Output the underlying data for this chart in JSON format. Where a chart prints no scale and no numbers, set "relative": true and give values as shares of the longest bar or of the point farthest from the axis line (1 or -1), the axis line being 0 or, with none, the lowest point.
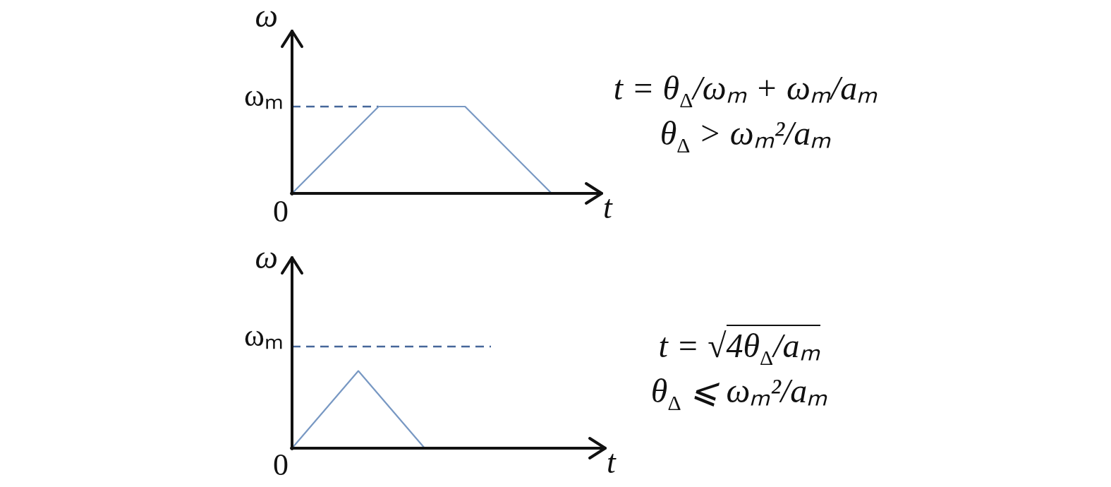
{
  "chart_data": [
    {
      "type": "line",
      "relative": true,
      "xlabel": "t",
      "ylabel": "ω",
      "categories": [
        null,
        null,
        null,
        null
      ],
      "marker": "none",
      "line_style": "solid",
      "series": [
        {
          "color": "#7898c3",
          "values": [
            0,
            1,
            1,
            0
          ]
        },
        {
          "color": "#46679a",
          "line_style": "dashed",
          "values": [
            1,
            1,
            null,
            null
          ]
        }
      ],
      "annotations": [
        "ωₘ",
        "0",
        "t = θ$_{Δ}$/ωₘ + ωₘ/aₘ",
        "θ$_{Δ}$ > ωₘ²/aₘ"
      ]
    },
    {
      "type": "line",
      "relative": true,
      "xlabel": "t",
      "ylabel": "ω",
      "categories": [
        null,
        null,
        null,
        null
      ],
      "marker": "none",
      "line_style": "solid",
      "series": [
        {
          "color": "#7898c3",
          "values": [
            0,
            0.76,
            0,
            null
          ]
        },
        {
          "color": "#46679a",
          "line_style": "dashed",
          "values": [
            1,
            1,
            1,
            1
          ]
        }
      ],
      "annotations": [
        "ωₘ",
        "0",
        "t = √4θ$_{Δ}$/aₘ",
        "θ$_{Δ}$ ⩽ ωₘ²/aₘ"
      ]
    }
  ]
}
